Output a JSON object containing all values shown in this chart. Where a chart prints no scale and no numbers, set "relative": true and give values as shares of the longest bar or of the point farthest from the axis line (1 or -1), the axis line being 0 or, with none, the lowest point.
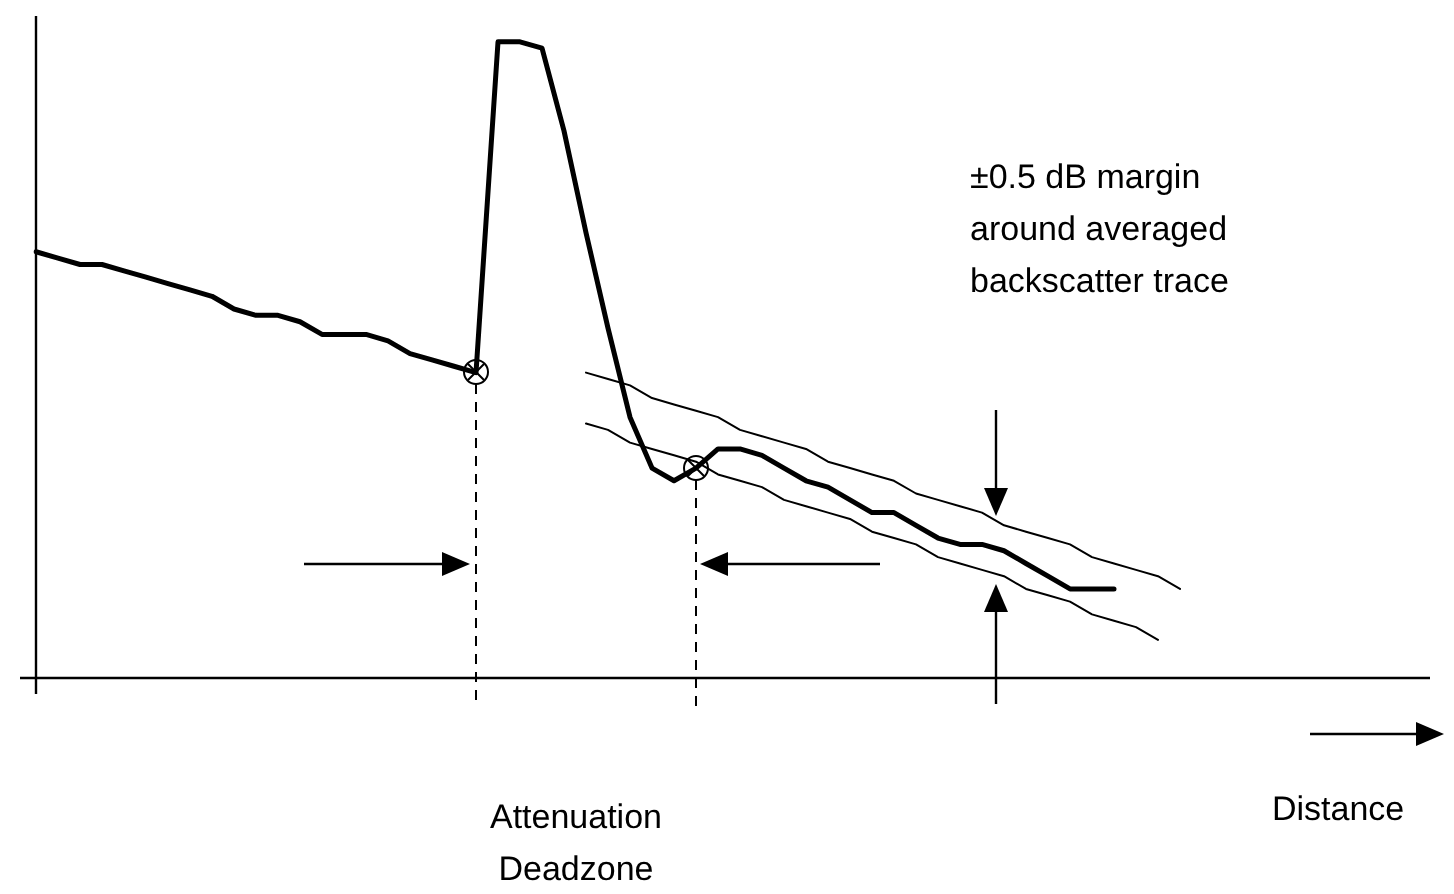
{
  "chart_data": {
    "type": "line",
    "relative": true,
    "legend": false,
    "marker": "none",
    "line_style": "solid",
    "categories": [
      null,
      null,
      null,
      null,
      null,
      null,
      null,
      null,
      null,
      null,
      null,
      null,
      null,
      null,
      null,
      null,
      null,
      null,
      null,
      null,
      null,
      null,
      null,
      null,
      null,
      null,
      null,
      null,
      null,
      null,
      null,
      null,
      null,
      null,
      null,
      null,
      null,
      null,
      null,
      null,
      null,
      null,
      null,
      null,
      null,
      null,
      null,
      null,
      null,
      null,
      null,
      null,
      null,
      null,
      null,
      null,
      null,
      null,
      null,
      null,
      null,
      null,
      null
    ],
    "series": [
      {
        "color": "#000000",
        "values": [
          0.67,
          0.66,
          0.65,
          0.65,
          0.64,
          0.63,
          0.62,
          0.61,
          0.6,
          0.58,
          0.57,
          0.57,
          0.56,
          0.54,
          0.54,
          0.54,
          0.53,
          0.51,
          0.5,
          0.49,
          0.48,
          1.0,
          1.0,
          0.99,
          0.86,
          0.7,
          0.55,
          0.41,
          0.33,
          0.31,
          0.33,
          0.36,
          0.36,
          0.35,
          0.33,
          0.31,
          0.3,
          0.28,
          0.26,
          0.26,
          0.24,
          0.22,
          0.21,
          0.21,
          0.2,
          0.18,
          0.16,
          0.14,
          0.14,
          0.14,
          null,
          null,
          null,
          null,
          null,
          null,
          null,
          null,
          null,
          null,
          null,
          null,
          null
        ]
      },
      {
        "color": "#000000",
        "values": [
          null,
          null,
          null,
          null,
          null,
          null,
          null,
          null,
          null,
          null,
          null,
          null,
          null,
          null,
          null,
          null,
          null,
          null,
          null,
          null,
          null,
          null,
          null,
          null,
          null,
          0.48,
          0.47,
          0.46,
          0.44,
          0.43,
          0.42,
          0.41,
          0.39,
          0.38,
          0.37,
          0.36,
          0.34,
          0.33,
          0.32,
          0.31,
          0.29,
          0.28,
          0.27,
          0.26,
          0.24,
          0.23,
          0.22,
          0.21,
          0.19,
          0.18,
          0.17,
          0.16,
          0.14,
          null,
          null,
          null,
          null,
          null,
          null,
          null,
          null,
          null,
          null
        ]
      },
      {
        "color": "#000000",
        "values": [
          null,
          null,
          null,
          null,
          null,
          null,
          null,
          null,
          null,
          null,
          null,
          null,
          null,
          null,
          null,
          null,
          null,
          null,
          null,
          null,
          null,
          null,
          null,
          null,
          null,
          0.4,
          0.39,
          0.37,
          0.36,
          0.35,
          0.34,
          0.32,
          0.31,
          0.3,
          0.28,
          0.27,
          0.26,
          0.25,
          0.23,
          0.22,
          0.21,
          0.19,
          0.18,
          0.17,
          0.16,
          0.14,
          0.13,
          0.12,
          0.1,
          0.09,
          0.08,
          0.06,
          null,
          null,
          null,
          null,
          null,
          null,
          null,
          null,
          null,
          null,
          null
        ]
      }
    ],
    "annotations": [
      "±0.5 dB margin around averaged backscatter trace",
      "Attenuation Deadzone",
      "Distance"
    ]
  }
}
